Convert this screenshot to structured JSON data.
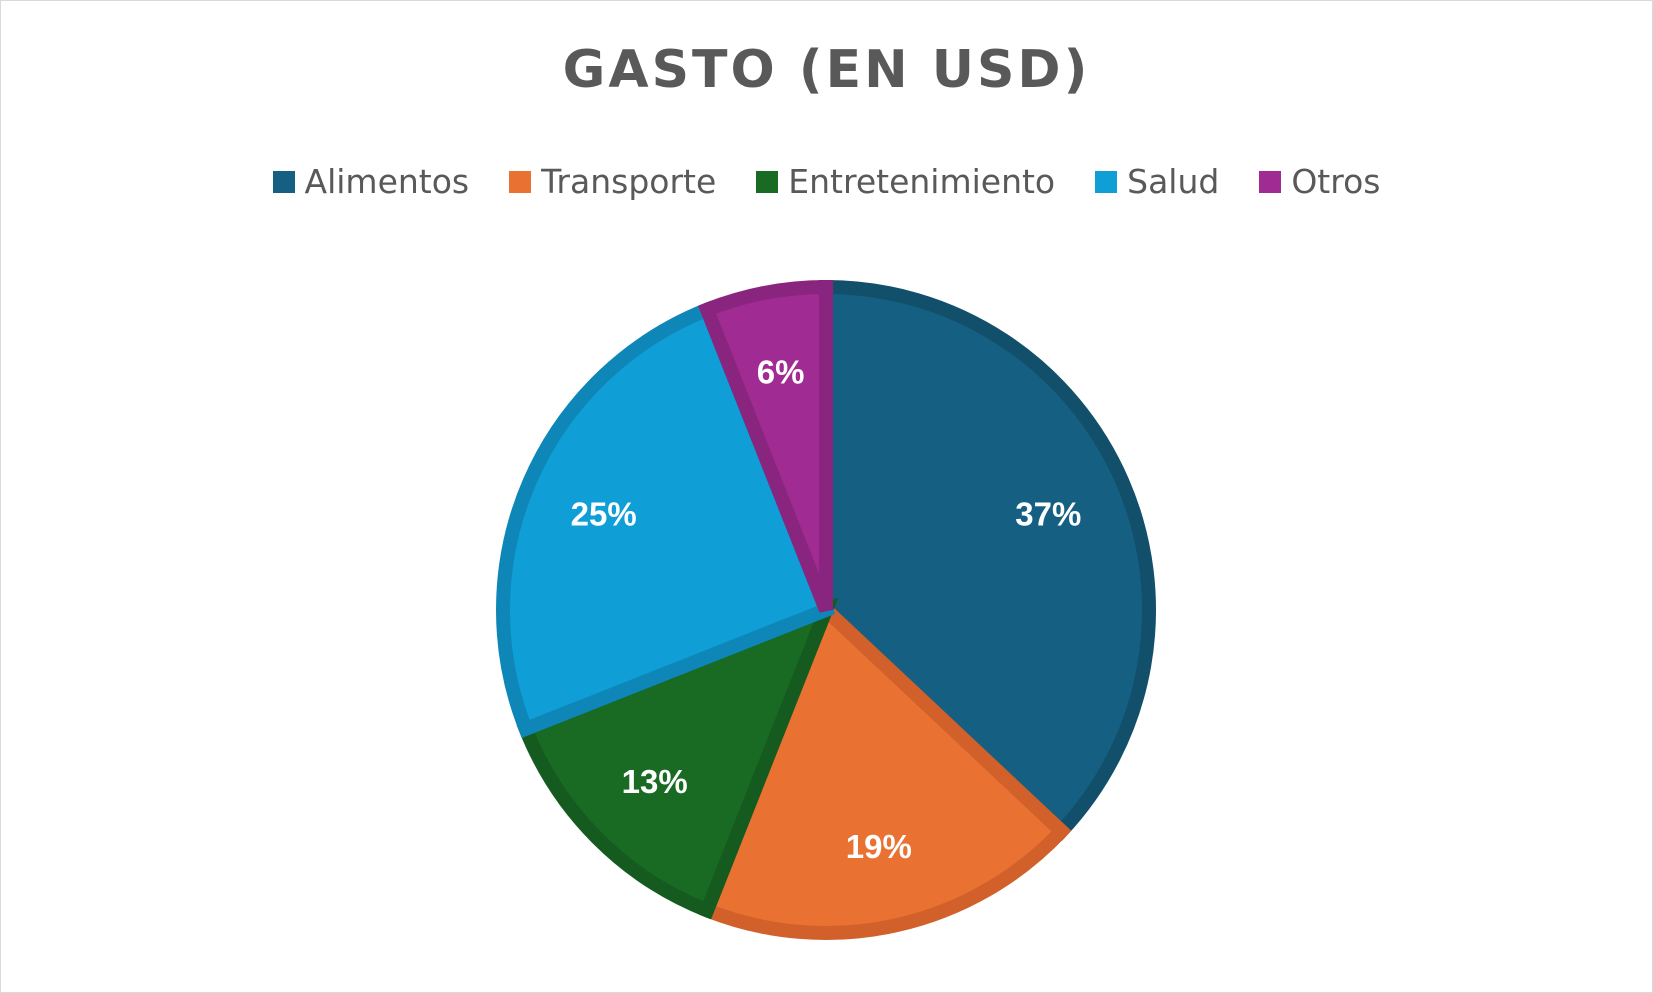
{
  "chart_data": {
    "type": "pie",
    "title": "GASTO (EN USD)",
    "legend_position": "top",
    "categories": [
      "Alimentos",
      "Transporte",
      "Entretenimiento",
      "Salud",
      "Otros"
    ],
    "values": [
      37,
      19,
      13,
      25,
      6
    ],
    "labels": [
      "37%",
      "19%",
      "13%",
      "25%",
      "6%"
    ],
    "colors": [
      "#156082",
      "#E97132",
      "#196B24",
      "#0F9ED5",
      "#A02B93"
    ],
    "border_colors": [
      "#124F6B",
      "#D2602A",
      "#155A1E",
      "#0E87B8",
      "#8A257F"
    ]
  }
}
